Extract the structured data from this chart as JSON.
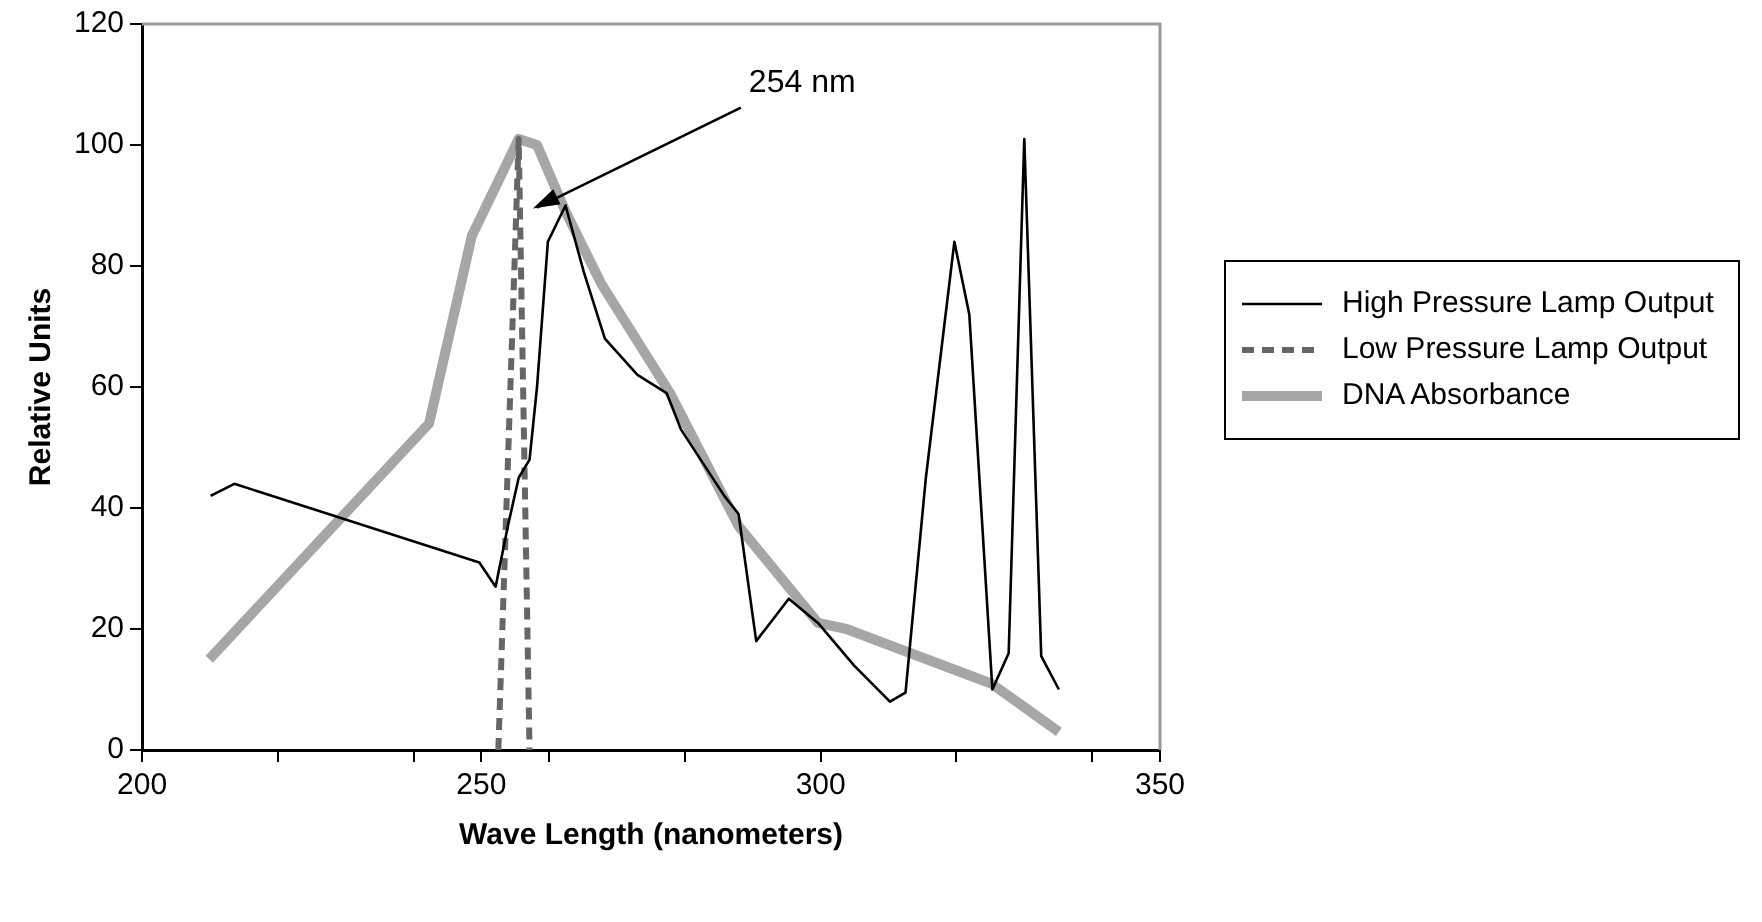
{
  "chart_data": {
    "type": "line",
    "xlabel": "Wave Length (nanometers)",
    "ylabel": "Relative Units",
    "xlim": [
      200,
      350
    ],
    "xticks": [
      200,
      {
        "value": 220,
        "label": null
      },
      {
        "value": 240,
        "label": null
      },
      250,
      {
        "value": 260,
        "label": null
      },
      {
        "value": 280,
        "label": null
      },
      300,
      {
        "value": 320,
        "label": null
      },
      {
        "value": 340,
        "label": null
      },
      350
    ],
    "ylim": [
      0,
      120
    ],
    "yticks": [
      0,
      20,
      40,
      60,
      80,
      100,
      120
    ],
    "grid": false,
    "legend": "right",
    "marker": "none",
    "series": [
      {
        "name": "High Pressure Lamp Output",
        "color": "#000000",
        "line_style": "solid",
        "x": [
          210.1,
          213.6,
          249.7,
          252.1,
          253.9,
          255.5,
          257.1,
          258.2,
          259.8,
          262.4,
          265.1,
          268.2,
          273.0,
          277.3,
          279.4,
          285.8,
          287.9,
          290.5,
          295.3,
          299.6,
          304.9,
          310.2,
          312.5,
          315.5,
          319.7,
          321.9,
          325.3,
          327.7,
          330.0,
          332.5,
          335.1
        ],
        "values": [
          42,
          44,
          31,
          27,
          37,
          45,
          48,
          60,
          84,
          90,
          79,
          68,
          62,
          59,
          53,
          42,
          39,
          18,
          25,
          21,
          14,
          8,
          9.5,
          45,
          84,
          72,
          10,
          16,
          101,
          15.5,
          10
        ]
      },
      {
        "name": "Low Pressure Lamp Output",
        "color": "#666666",
        "line_style": "dashed",
        "x": [
          252.5,
          255.5,
          257.1
        ],
        "values": [
          0,
          101,
          0
        ]
      },
      {
        "name": "DNA Absorbance",
        "color": "#a6a6a6",
        "line_style": "solid",
        "x": [
          209.9,
          242.3,
          248.6,
          255.5,
          258.2,
          262.4,
          267.7,
          277.8,
          287.9,
          299.6,
          303.8,
          325.1,
          335.1
        ],
        "values": [
          15,
          54,
          85,
          101,
          100,
          89,
          77,
          59,
          37,
          21,
          20,
          11,
          3
        ]
      }
    ],
    "annotations": [
      {
        "text": "254 nm",
        "x": 257,
        "y": 89
      }
    ]
  }
}
